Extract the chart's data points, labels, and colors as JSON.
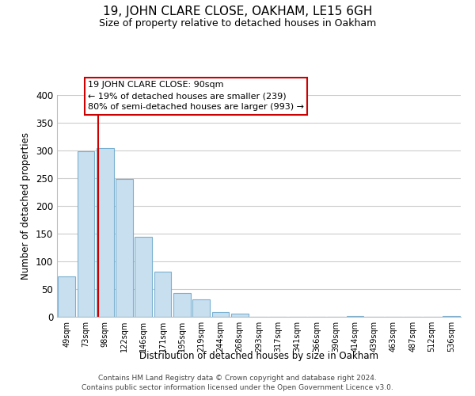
{
  "title": "19, JOHN CLARE CLOSE, OAKHAM, LE15 6GH",
  "subtitle": "Size of property relative to detached houses in Oakham",
  "xlabel": "Distribution of detached houses by size in Oakham",
  "ylabel": "Number of detached properties",
  "bar_color": "#c8dff0",
  "bar_edge_color": "#7ab0d0",
  "vline_color": "#cc0000",
  "vline_x_idx": 1.65,
  "categories": [
    "49sqm",
    "73sqm",
    "98sqm",
    "122sqm",
    "146sqm",
    "171sqm",
    "195sqm",
    "219sqm",
    "244sqm",
    "268sqm",
    "293sqm",
    "317sqm",
    "341sqm",
    "366sqm",
    "390sqm",
    "414sqm",
    "439sqm",
    "463sqm",
    "487sqm",
    "512sqm",
    "536sqm"
  ],
  "values": [
    73,
    299,
    304,
    249,
    144,
    82,
    43,
    32,
    8,
    6,
    0,
    0,
    0,
    0,
    0,
    1,
    0,
    0,
    0,
    0,
    2
  ],
  "ylim": [
    0,
    400
  ],
  "yticks": [
    0,
    50,
    100,
    150,
    200,
    250,
    300,
    350,
    400
  ],
  "annotation_title": "19 JOHN CLARE CLOSE: 90sqm",
  "annotation_line1": "← 19% of detached houses are smaller (239)",
  "annotation_line2": "80% of semi-detached houses are larger (993) →",
  "footer_line1": "Contains HM Land Registry data © Crown copyright and database right 2024.",
  "footer_line2": "Contains public sector information licensed under the Open Government Licence v3.0.",
  "background_color": "#ffffff",
  "grid_color": "#cccccc"
}
